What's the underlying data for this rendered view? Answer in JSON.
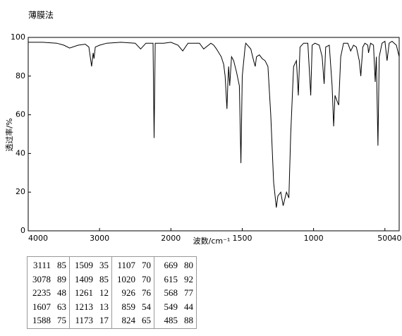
{
  "chart_data": {
    "type": "line",
    "title": "薄膜法",
    "x_label": "波数/cm⁻¹",
    "y_label": "透过率/%",
    "x": [
      4000,
      3800,
      3600,
      3500,
      3420,
      3300,
      3200,
      3150,
      3111,
      3090,
      3078,
      3060,
      3000,
      2900,
      2700,
      2500,
      2424,
      2350,
      2250,
      2235,
      2220,
      2100,
      2000,
      1950,
      1917,
      1880,
      1800,
      1770,
      1720,
      1700,
      1680,
      1647,
      1630,
      1620,
      1607,
      1600,
      1595,
      1588,
      1575,
      1560,
      1540,
      1520,
      1509,
      1500,
      1480,
      1475,
      1440,
      1420,
      1409,
      1400,
      1380,
      1360,
      1340,
      1320,
      1300,
      1280,
      1261,
      1250,
      1230,
      1213,
      1190,
      1173,
      1160,
      1140,
      1120,
      1107,
      1095,
      1070,
      1040,
      1020,
      1010,
      990,
      960,
      940,
      926,
      915,
      890,
      870,
      859,
      850,
      840,
      824,
      810,
      790,
      760,
      740,
      720,
      700,
      680,
      669,
      655,
      640,
      620,
      615,
      600,
      580,
      568,
      560,
      549,
      540,
      520,
      500,
      485,
      470,
      450,
      420,
      400
    ],
    "values": [
      97.5,
      97.5,
      97,
      96,
      94.5,
      96,
      96.5,
      95,
      85,
      92,
      89,
      95,
      96,
      97,
      97.5,
      97,
      94,
      97,
      97,
      48,
      97,
      97,
      97.5,
      96,
      93,
      97,
      97,
      94,
      97,
      96,
      94,
      90,
      86,
      80,
      63,
      78,
      85,
      75,
      90,
      88,
      82,
      75,
      35,
      80,
      95,
      97,
      94,
      88,
      85,
      90,
      91,
      89,
      88,
      85,
      60,
      25,
      12,
      18,
      20,
      13,
      20,
      17,
      50,
      85,
      88,
      70,
      95,
      97,
      97,
      70,
      96,
      97,
      96,
      90,
      76,
      95,
      96,
      75,
      54,
      70,
      68,
      65,
      90,
      97,
      97,
      93,
      96,
      95,
      88,
      80,
      95,
      97,
      96,
      92,
      97,
      96,
      77,
      90,
      44,
      90,
      97,
      98,
      88,
      97,
      98,
      96,
      90
    ],
    "color": "#000000",
    "xlim": [
      4000,
      400
    ],
    "xticks": [
      4000,
      3000,
      2000,
      1500,
      1000,
      500,
      400
    ],
    "ylim": [
      0,
      100
    ],
    "yticks": [
      0,
      20,
      40,
      60,
      80,
      100
    ]
  },
  "peak_table": {
    "columns": [
      [
        [
          3111,
          85
        ],
        [
          3078,
          89
        ],
        [
          2235,
          48
        ],
        [
          1607,
          63
        ],
        [
          1588,
          75
        ]
      ],
      [
        [
          1509,
          35
        ],
        [
          1409,
          85
        ],
        [
          1261,
          12
        ],
        [
          1213,
          13
        ],
        [
          1173,
          17
        ]
      ],
      [
        [
          1107,
          70
        ],
        [
          1020,
          70
        ],
        [
          926,
          76
        ],
        [
          859,
          54
        ],
        [
          824,
          65
        ]
      ],
      [
        [
          669,
          80
        ],
        [
          615,
          92
        ],
        [
          568,
          77
        ],
        [
          549,
          44
        ],
        [
          485,
          88
        ]
      ]
    ]
  }
}
